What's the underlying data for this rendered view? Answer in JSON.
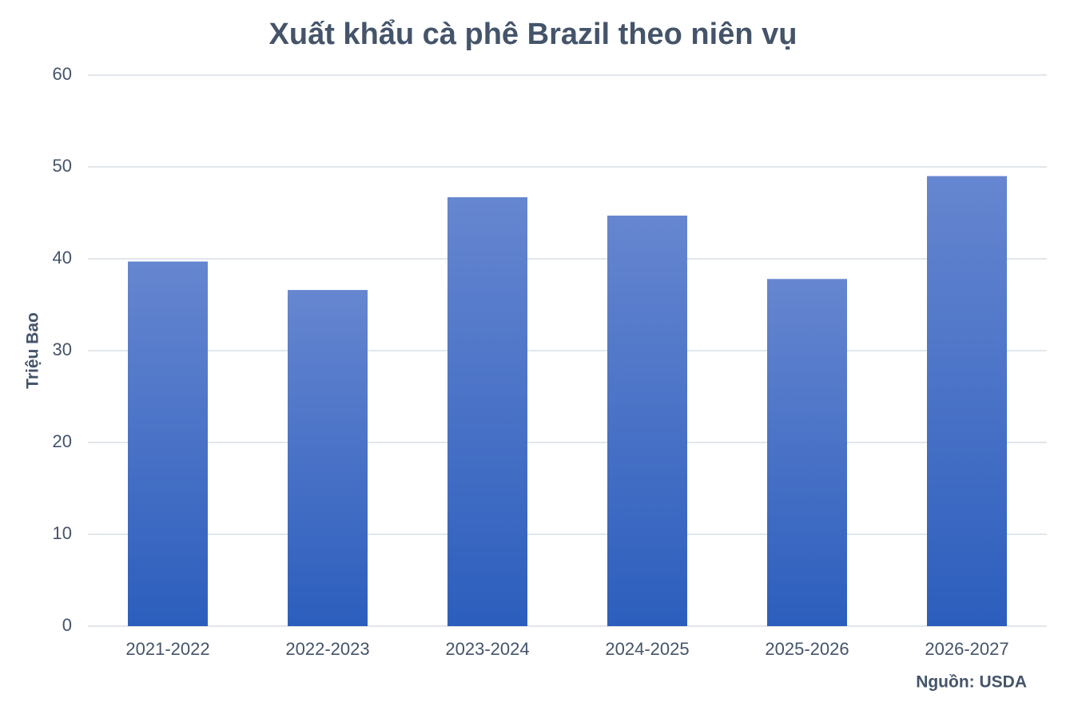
{
  "chart_data": {
    "type": "bar",
    "title": "Xuất khẩu cà phê Brazil theo niên vụ",
    "y_label": "Triệu Bao",
    "source": "Nguồn: USDA",
    "categories": [
      "2021-2022",
      "2022-2023",
      "2023-2024",
      "2024-2025",
      "2025-2026",
      "2026-2027"
    ],
    "values": [
      39.7,
      36.6,
      46.7,
      44.7,
      37.8,
      49.0
    ],
    "gradient": [
      "#6686d0",
      "#2c5ebd"
    ],
    "ylim": [
      0,
      60
    ],
    "yticks": [
      0,
      10,
      20,
      30,
      40,
      50,
      60
    ],
    "grid": true
  }
}
